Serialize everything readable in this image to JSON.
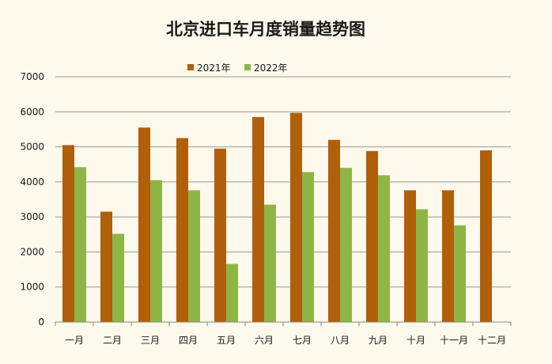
{
  "chart_data": {
    "type": "bar",
    "title": "北京进口车月度销量趋势图",
    "xlabel": "",
    "ylabel": "",
    "ylim": [
      0,
      7000
    ],
    "yticks": [
      0,
      1000,
      2000,
      3000,
      4000,
      5000,
      6000,
      7000
    ],
    "grid": true,
    "legend_position": "top-center",
    "categories": [
      "一月",
      "二月",
      "三月",
      "四月",
      "五月",
      "六月",
      "七月",
      "八月",
      "九月",
      "十月",
      "十一月",
      "十二月"
    ],
    "series": [
      {
        "name": "2021年",
        "color": "#b05f0a",
        "values": [
          5050,
          3150,
          5550,
          5250,
          4950,
          5850,
          5970,
          5200,
          4880,
          3760,
          3760,
          4900
        ]
      },
      {
        "name": "2022年",
        "color": "#8fb547",
        "values": [
          4420,
          2520,
          4050,
          3760,
          1660,
          3350,
          4280,
          4400,
          4190,
          3220,
          2760,
          null
        ]
      }
    ]
  }
}
